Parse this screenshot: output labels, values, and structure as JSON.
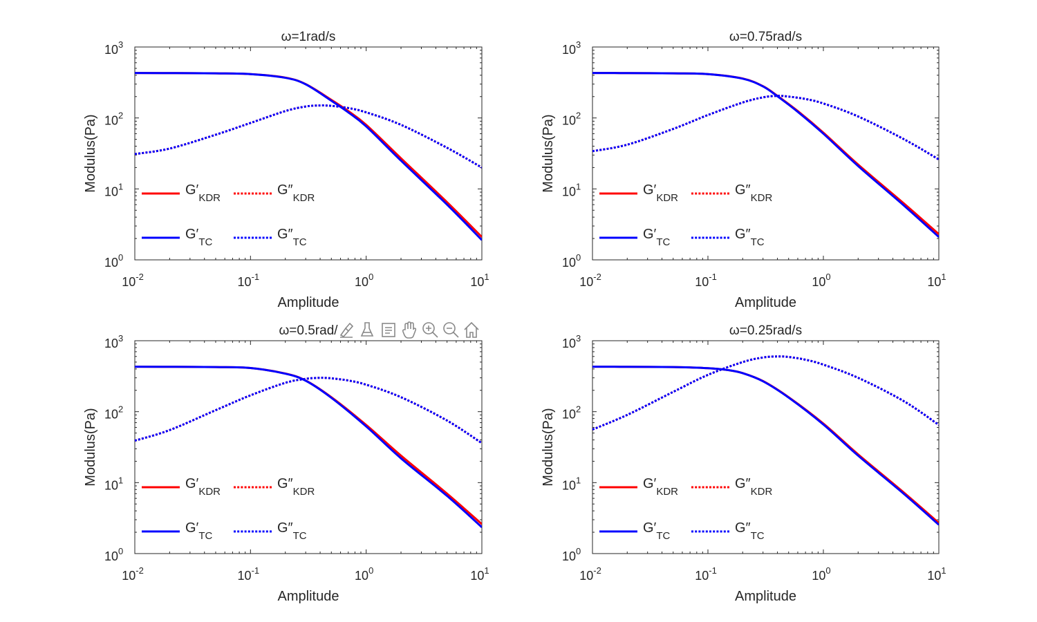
{
  "colors": {
    "kdr": "#ff0000",
    "tc": "#0000ff",
    "axis": "#262626"
  },
  "toolbar": {
    "icons": [
      "brush-icon",
      "eraser-icon",
      "data-tip-icon",
      "pan-hand-icon",
      "zoom-in-icon",
      "zoom-out-icon",
      "home-icon"
    ]
  },
  "chart_data": [
    {
      "type": "line",
      "title": "ω=1rad/s",
      "xlabel": "Amplitude",
      "ylabel": "Modulus(Pa)",
      "xscale": "log",
      "yscale": "log",
      "xlim": [
        0.01,
        10
      ],
      "ylim": [
        1,
        1000
      ],
      "xticks": [
        {
          "base": "10",
          "exp": "-2"
        },
        {
          "base": "10",
          "exp": "-1"
        },
        {
          "base": "10",
          "exp": "0"
        },
        {
          "base": "10",
          "exp": "1"
        }
      ],
      "yticks": [
        {
          "base": "10",
          "exp": "0"
        },
        {
          "base": "10",
          "exp": "1"
        },
        {
          "base": "10",
          "exp": "2"
        },
        {
          "base": "10",
          "exp": "3"
        }
      ],
      "legend": {
        "location": "lower-left",
        "entries": [
          {
            "main": "G′",
            "sub": "KDR",
            "series": "G'_KDR"
          },
          {
            "main": "G″",
            "sub": "KDR",
            "series": "G''_KDR"
          },
          {
            "main": "G′",
            "sub": "TC",
            "series": "G'_TC"
          },
          {
            "main": "G″",
            "sub": "TC",
            "series": "G''_TC"
          }
        ]
      },
      "series": [
        {
          "name": "G'_KDR",
          "color": "#ff0000",
          "style": "solid",
          "x": [
            0.01,
            0.02,
            0.05,
            0.1,
            0.2,
            0.3,
            0.5,
            0.7,
            1,
            2,
            5,
            10
          ],
          "y": [
            430,
            429,
            425,
            415,
            370,
            300,
            180,
            125,
            80,
            27,
            6.5,
            2.1
          ]
        },
        {
          "name": "G''_KDR",
          "color": "#ff0000",
          "style": "dotted",
          "x": [
            0.01,
            0.02,
            0.05,
            0.1,
            0.2,
            0.3,
            0.4,
            0.5,
            0.7,
            1,
            2,
            5,
            10
          ],
          "y": [
            31,
            37,
            58,
            85,
            125,
            145,
            150,
            148,
            138,
            120,
            80,
            38,
            20
          ]
        },
        {
          "name": "G'_TC",
          "color": "#0000ff",
          "style": "solid",
          "x": [
            0.01,
            0.02,
            0.05,
            0.1,
            0.2,
            0.3,
            0.5,
            0.7,
            1,
            2,
            5,
            10
          ],
          "y": [
            430,
            429,
            425,
            415,
            368,
            298,
            175,
            120,
            76,
            25,
            6.0,
            1.9
          ]
        },
        {
          "name": "G''_TC",
          "color": "#0000ff",
          "style": "dotted",
          "x": [
            0.01,
            0.02,
            0.05,
            0.1,
            0.2,
            0.3,
            0.4,
            0.5,
            0.7,
            1,
            2,
            5,
            10
          ],
          "y": [
            31,
            37,
            58,
            85,
            125,
            145,
            150,
            148,
            138,
            120,
            80,
            38,
            20
          ]
        }
      ]
    },
    {
      "type": "line",
      "title": "ω=0.75rad/s",
      "xlabel": "Amplitude",
      "ylabel": "Modulus(Pa)",
      "xscale": "log",
      "yscale": "log",
      "xlim": [
        0.01,
        10
      ],
      "ylim": [
        1,
        1000
      ],
      "xticks": [
        {
          "base": "10",
          "exp": "-2"
        },
        {
          "base": "10",
          "exp": "-1"
        },
        {
          "base": "10",
          "exp": "0"
        },
        {
          "base": "10",
          "exp": "1"
        }
      ],
      "yticks": [
        {
          "base": "10",
          "exp": "0"
        },
        {
          "base": "10",
          "exp": "1"
        },
        {
          "base": "10",
          "exp": "2"
        },
        {
          "base": "10",
          "exp": "3"
        }
      ],
      "legend": {
        "location": "lower-left",
        "entries": [
          {
            "main": "G′",
            "sub": "KDR",
            "series": "G'_KDR"
          },
          {
            "main": "G″",
            "sub": "KDR",
            "series": "G''_KDR"
          },
          {
            "main": "G′",
            "sub": "TC",
            "series": "G'_TC"
          },
          {
            "main": "G″",
            "sub": "TC",
            "series": "G''_TC"
          }
        ]
      },
      "series": [
        {
          "name": "G'_KDR",
          "color": "#ff0000",
          "style": "solid",
          "x": [
            0.01,
            0.02,
            0.05,
            0.1,
            0.2,
            0.3,
            0.4,
            0.6,
            1,
            2,
            5,
            10
          ],
          "y": [
            430,
            429,
            425,
            415,
            360,
            280,
            205,
            125,
            62,
            22,
            6.2,
            2.3
          ]
        },
        {
          "name": "G''_KDR",
          "color": "#ff0000",
          "style": "dotted",
          "x": [
            0.01,
            0.02,
            0.05,
            0.1,
            0.2,
            0.3,
            0.4,
            0.5,
            0.7,
            1,
            2,
            5,
            10
          ],
          "y": [
            34,
            42,
            70,
            110,
            165,
            195,
            205,
            200,
            185,
            160,
            105,
            50,
            26
          ]
        },
        {
          "name": "G'_TC",
          "color": "#0000ff",
          "style": "solid",
          "x": [
            0.01,
            0.02,
            0.05,
            0.1,
            0.2,
            0.3,
            0.4,
            0.6,
            1,
            2,
            5,
            10
          ],
          "y": [
            430,
            429,
            425,
            415,
            358,
            278,
            202,
            122,
            60,
            21,
            5.8,
            2.1
          ]
        },
        {
          "name": "G''_TC",
          "color": "#0000ff",
          "style": "dotted",
          "x": [
            0.01,
            0.02,
            0.05,
            0.1,
            0.2,
            0.3,
            0.4,
            0.5,
            0.7,
            1,
            2,
            5,
            10
          ],
          "y": [
            34,
            42,
            70,
            110,
            165,
            195,
            205,
            200,
            185,
            160,
            105,
            50,
            26
          ]
        }
      ]
    },
    {
      "type": "line",
      "title": "ω=0.5rad/",
      "xlabel": "Amplitude",
      "ylabel": "Modulus(Pa)",
      "xscale": "log",
      "yscale": "log",
      "xlim": [
        0.01,
        10
      ],
      "ylim": [
        1,
        1000
      ],
      "xticks": [
        {
          "base": "10",
          "exp": "-2"
        },
        {
          "base": "10",
          "exp": "-1"
        },
        {
          "base": "10",
          "exp": "0"
        },
        {
          "base": "10",
          "exp": "1"
        }
      ],
      "yticks": [
        {
          "base": "10",
          "exp": "0"
        },
        {
          "base": "10",
          "exp": "1"
        },
        {
          "base": "10",
          "exp": "2"
        },
        {
          "base": "10",
          "exp": "3"
        }
      ],
      "legend": {
        "location": "lower-left",
        "entries": [
          {
            "main": "G′",
            "sub": "KDR",
            "series": "G'_KDR"
          },
          {
            "main": "G″",
            "sub": "KDR",
            "series": "G''_KDR"
          },
          {
            "main": "G′",
            "sub": "TC",
            "series": "G'_TC"
          },
          {
            "main": "G″",
            "sub": "TC",
            "series": "G''_TC"
          }
        ]
      },
      "series": [
        {
          "name": "G'_KDR",
          "color": "#ff0000",
          "style": "solid",
          "x": [
            0.01,
            0.02,
            0.05,
            0.1,
            0.2,
            0.3,
            0.5,
            1,
            2,
            5,
            10
          ],
          "y": [
            430,
            429,
            425,
            412,
            345,
            275,
            160,
            65,
            24,
            7,
            2.6
          ]
        },
        {
          "name": "G''_KDR",
          "color": "#ff0000",
          "style": "dotted",
          "x": [
            0.01,
            0.02,
            0.05,
            0.1,
            0.2,
            0.3,
            0.4,
            0.5,
            0.7,
            1,
            2,
            5,
            10
          ],
          "y": [
            39,
            55,
            105,
            170,
            255,
            290,
            300,
            295,
            275,
            240,
            160,
            75,
            36
          ]
        },
        {
          "name": "G'_TC",
          "color": "#0000ff",
          "style": "solid",
          "x": [
            0.01,
            0.02,
            0.05,
            0.1,
            0.2,
            0.3,
            0.5,
            1,
            2,
            5,
            10
          ],
          "y": [
            430,
            429,
            425,
            412,
            343,
            273,
            157,
            62,
            22,
            6.5,
            2.35
          ]
        },
        {
          "name": "G''_TC",
          "color": "#0000ff",
          "style": "dotted",
          "x": [
            0.01,
            0.02,
            0.05,
            0.1,
            0.2,
            0.3,
            0.4,
            0.5,
            0.7,
            1,
            2,
            5,
            10
          ],
          "y": [
            39,
            55,
            105,
            170,
            255,
            290,
            300,
            295,
            275,
            240,
            160,
            75,
            36
          ]
        }
      ]
    },
    {
      "type": "line",
      "title": "ω=0.25rad/s",
      "xlabel": "Amplitude",
      "ylabel": "Modulus(Pa)",
      "xscale": "log",
      "yscale": "log",
      "xlim": [
        0.01,
        10
      ],
      "ylim": [
        1,
        1000
      ],
      "xticks": [
        {
          "base": "10",
          "exp": "-2"
        },
        {
          "base": "10",
          "exp": "-1"
        },
        {
          "base": "10",
          "exp": "0"
        },
        {
          "base": "10",
          "exp": "1"
        }
      ],
      "yticks": [
        {
          "base": "10",
          "exp": "0"
        },
        {
          "base": "10",
          "exp": "1"
        },
        {
          "base": "10",
          "exp": "2"
        },
        {
          "base": "10",
          "exp": "3"
        }
      ],
      "legend": {
        "location": "lower-left",
        "entries": [
          {
            "main": "G′",
            "sub": "KDR",
            "series": "G'_KDR"
          },
          {
            "main": "G″",
            "sub": "KDR",
            "series": "G''_KDR"
          },
          {
            "main": "G′",
            "sub": "TC",
            "series": "G'_TC"
          },
          {
            "main": "G″",
            "sub": "TC",
            "series": "G''_TC"
          }
        ]
      },
      "series": [
        {
          "name": "G'_KDR",
          "color": "#ff0000",
          "style": "solid",
          "x": [
            0.01,
            0.02,
            0.05,
            0.1,
            0.15,
            0.2,
            0.3,
            0.5,
            1,
            2,
            5,
            10
          ],
          "y": [
            430,
            429,
            425,
            410,
            385,
            350,
            270,
            160,
            68,
            25,
            7.2,
            2.7
          ]
        },
        {
          "name": "G''_KDR",
          "color": "#ff0000",
          "style": "dotted",
          "x": [
            0.01,
            0.02,
            0.05,
            0.1,
            0.2,
            0.3,
            0.4,
            0.5,
            0.7,
            1,
            2,
            5,
            10
          ],
          "y": [
            56,
            90,
            190,
            330,
            500,
            580,
            600,
            590,
            540,
            460,
            300,
            140,
            65
          ]
        },
        {
          "name": "G'_TC",
          "color": "#0000ff",
          "style": "solid",
          "x": [
            0.01,
            0.02,
            0.05,
            0.1,
            0.15,
            0.2,
            0.3,
            0.5,
            1,
            2,
            5,
            10
          ],
          "y": [
            430,
            429,
            425,
            410,
            385,
            349,
            268,
            158,
            66,
            24,
            6.9,
            2.55
          ]
        },
        {
          "name": "G''_TC",
          "color": "#0000ff",
          "style": "dotted",
          "x": [
            0.01,
            0.02,
            0.05,
            0.1,
            0.2,
            0.3,
            0.4,
            0.5,
            0.7,
            1,
            2,
            5,
            10
          ],
          "y": [
            56,
            90,
            190,
            330,
            500,
            580,
            600,
            590,
            540,
            460,
            300,
            140,
            65
          ]
        }
      ]
    }
  ]
}
